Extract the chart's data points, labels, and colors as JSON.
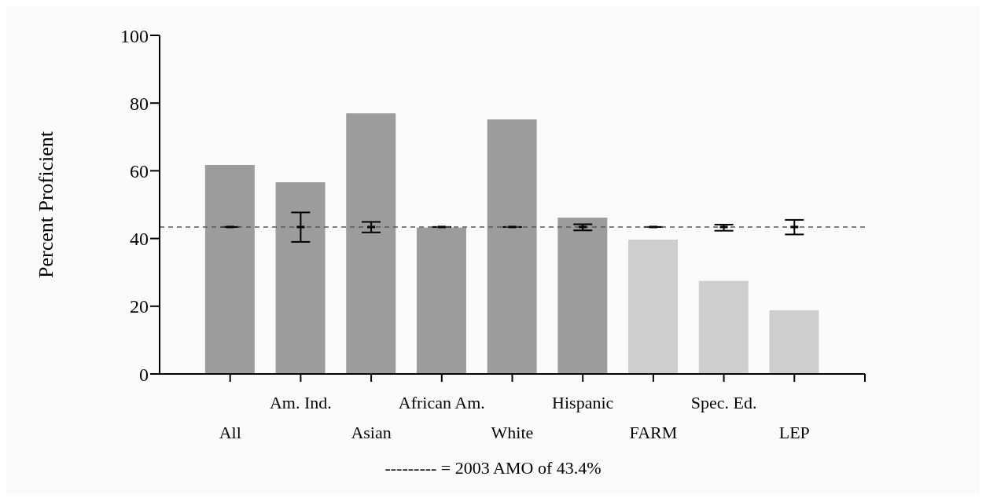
{
  "chart_data": {
    "type": "bar",
    "ylabel": "Percent Proficient",
    "categories": [
      "All",
      "Am. Ind.",
      "Asian",
      "African Am.",
      "White",
      "Hispanic",
      "FARM",
      "Spec. Ed.",
      "LEP"
    ],
    "series": [
      {
        "values": [
          61.7,
          56.6,
          77,
          43.2,
          75.2,
          46.2,
          39.7,
          27.5,
          18.8
        ],
        "colors": [
          "#9c9c9c",
          "#9c9c9c",
          "#9c9c9c",
          "#9c9c9c",
          "#9c9c9c",
          "#9c9c9c",
          "#cecece",
          "#cecece",
          "#cecece"
        ]
      },
      {
        "type": "scatter",
        "color": "#000000",
        "values": [
          43.4,
          43.4,
          43.4,
          43.4,
          43.4,
          43.4,
          43.4,
          43.4,
          43.4
        ],
        "errors": [
          0,
          [
            39.0,
            47.7
          ],
          [
            41.8,
            44.9
          ],
          0,
          0,
          [
            42.4,
            44.2
          ],
          0,
          [
            42.3,
            44.1
          ],
          [
            41.2,
            45.5
          ]
        ]
      }
    ],
    "ylim": [
      0,
      100
    ],
    "yticks": [
      0,
      20,
      40,
      60,
      80,
      100
    ],
    "grid": false,
    "legend": false,
    "ref_lines": [
      {
        "axis": "y",
        "value": 43.4,
        "color": "#555555",
        "line_style": "dashed"
      }
    ],
    "annotations": [
      "--------- = 2003 AMO of 43.4%"
    ]
  }
}
